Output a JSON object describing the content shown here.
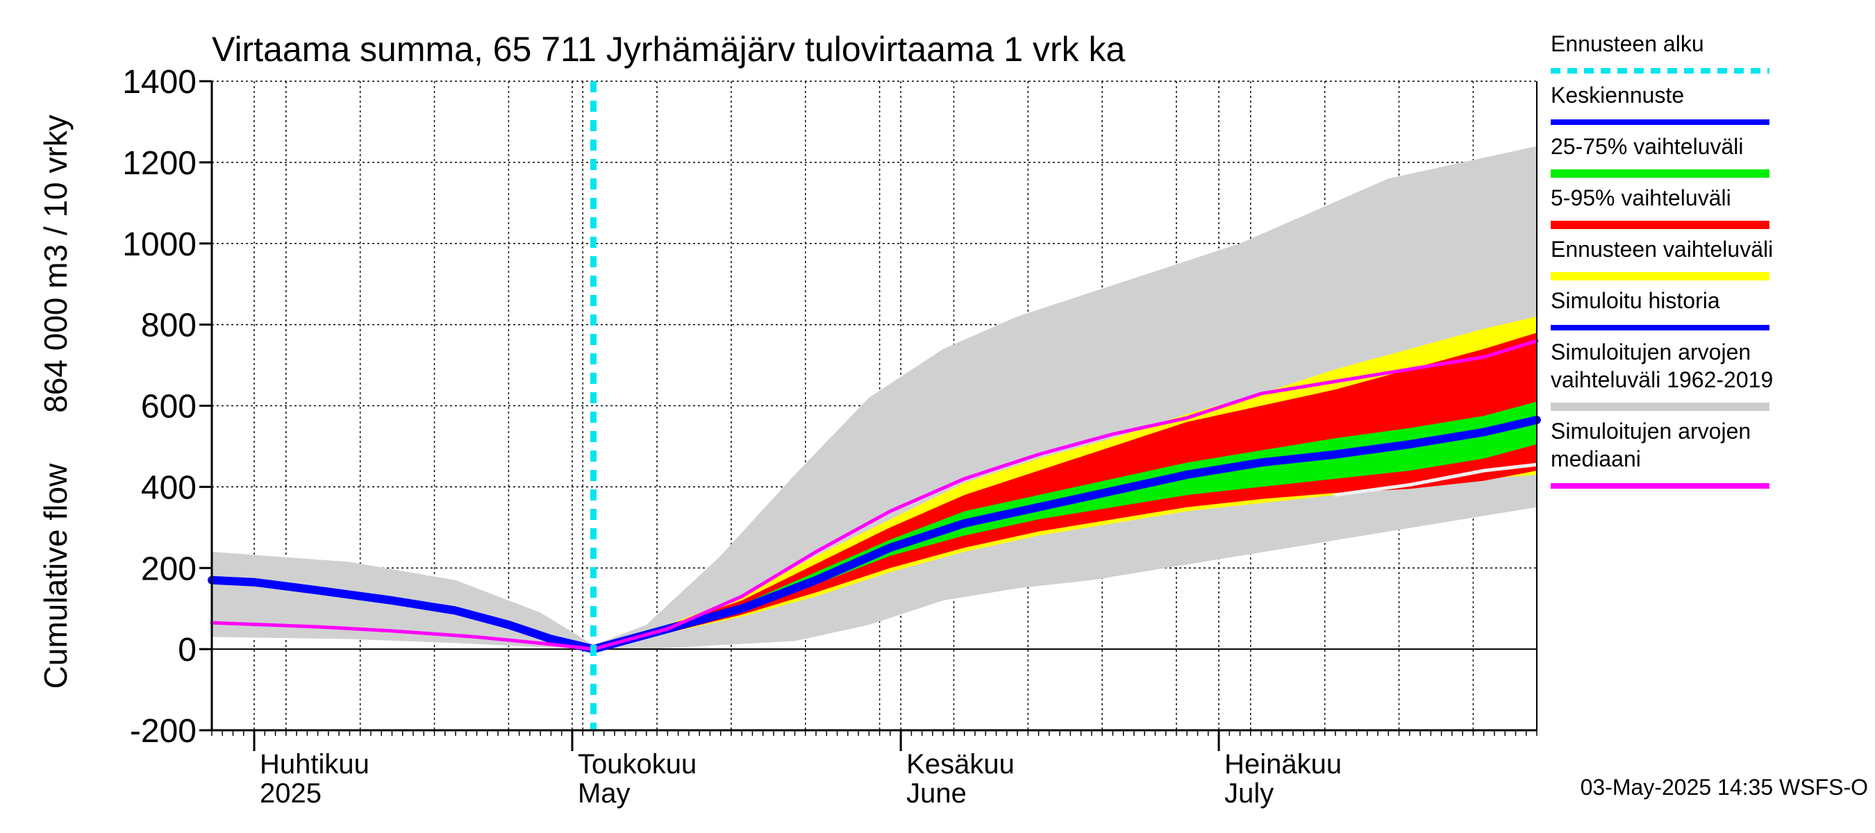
{
  "chart_data": {
    "type": "area",
    "title": "Virtaama summa, 65 711 Jyrhämäjärv tulovirtaama 1 vrk ka",
    "ylabel_left": "Cumulative flow",
    "ylabel_right": "864 000 m3 / 10 vrky",
    "ylim": [
      -200,
      1400
    ],
    "yticks": [
      -200,
      0,
      200,
      400,
      600,
      800,
      1000,
      1200,
      1400
    ],
    "xlim": [
      "2025-03-28",
      "2025-07-31"
    ],
    "forecast_start": "2025-05-03",
    "grid": true,
    "month_labels": [
      {
        "date": "2025-04-01",
        "fi": "Huhtikuu",
        "en": "2025"
      },
      {
        "date": "2025-05-01",
        "fi": "Toukokuu",
        "en": "May"
      },
      {
        "date": "2025-06-01",
        "fi": "Kesäkuu",
        "en": "June"
      },
      {
        "date": "2025-07-01",
        "fi": "Heinäkuu",
        "en": "July"
      }
    ],
    "legend": [
      {
        "label": "Ennusteen alku",
        "color": "#00e5ee",
        "style": "dashed"
      },
      {
        "label": "Keskiennuste",
        "color": "#0000ff",
        "style": "line"
      },
      {
        "label": "25-75% vaihteluväli",
        "color": "#00ee00",
        "style": "band"
      },
      {
        "label": "5-95% vaihteluväli",
        "color": "#ff0000",
        "style": "band"
      },
      {
        "label": "Ennusteen vaihteluväli",
        "color": "#ffff00",
        "style": "band"
      },
      {
        "label": "Simuloitu historia",
        "color": "#0000ff",
        "style": "line"
      },
      {
        "label": "Simuloitujen arvojen vaihteluväli 1962-2019",
        "color": "#cccccc",
        "style": "band"
      },
      {
        "label": "Simuloitujen arvojen mediaani",
        "color": "#ff00ff",
        "style": "line"
      }
    ],
    "series": [
      {
        "name": "Simuloitujen arvojen vaihteluväli 1962-2019",
        "color": "#d0d0d0",
        "points": [
          [
            "2025-03-28",
            30,
            240
          ],
          [
            "2025-04-10",
            25,
            215
          ],
          [
            "2025-04-20",
            15,
            170
          ],
          [
            "2025-04-28",
            5,
            90
          ],
          [
            "2025-05-03",
            0,
            10
          ],
          [
            "2025-05-08",
            0,
            60
          ],
          [
            "2025-05-15",
            10,
            230
          ],
          [
            "2025-05-22",
            20,
            430
          ],
          [
            "2025-05-29",
            60,
            620
          ],
          [
            "2025-06-05",
            120,
            740
          ],
          [
            "2025-06-12",
            150,
            820
          ],
          [
            "2025-06-19",
            170,
            880
          ],
          [
            "2025-06-26",
            200,
            940
          ],
          [
            "2025-07-03",
            230,
            1000
          ],
          [
            "2025-07-10",
            260,
            1080
          ],
          [
            "2025-07-17",
            290,
            1160
          ],
          [
            "2025-07-24",
            320,
            1200
          ],
          [
            "2025-07-31",
            350,
            1240
          ]
        ]
      },
      {
        "name": "Ennusteen vaihteluväli",
        "color": "#ffff00",
        "points": [
          [
            "2025-05-03",
            0,
            0
          ],
          [
            "2025-05-10",
            40,
            60
          ],
          [
            "2025-05-17",
            80,
            130
          ],
          [
            "2025-05-24",
            130,
            230
          ],
          [
            "2025-05-31",
            190,
            320
          ],
          [
            "2025-06-07",
            240,
            410
          ],
          [
            "2025-06-14",
            280,
            470
          ],
          [
            "2025-06-21",
            310,
            520
          ],
          [
            "2025-06-28",
            340,
            580
          ],
          [
            "2025-07-05",
            360,
            630
          ],
          [
            "2025-07-12",
            380,
            690
          ],
          [
            "2025-07-19",
            400,
            740
          ],
          [
            "2025-07-26",
            420,
            790
          ],
          [
            "2025-07-31",
            430,
            820
          ]
        ]
      },
      {
        "name": "5-95% vaihteluväli",
        "color": "#ff0000",
        "points": [
          [
            "2025-05-03",
            0,
            0
          ],
          [
            "2025-05-10",
            40,
            58
          ],
          [
            "2025-05-17",
            85,
            120
          ],
          [
            "2025-05-24",
            140,
            210
          ],
          [
            "2025-05-31",
            200,
            300
          ],
          [
            "2025-06-07",
            250,
            380
          ],
          [
            "2025-06-14",
            290,
            440
          ],
          [
            "2025-06-21",
            320,
            500
          ],
          [
            "2025-06-28",
            350,
            560
          ],
          [
            "2025-07-05",
            370,
            600
          ],
          [
            "2025-07-12",
            385,
            640
          ],
          [
            "2025-07-19",
            395,
            690
          ],
          [
            "2025-07-26",
            415,
            740
          ],
          [
            "2025-07-31",
            440,
            780
          ]
        ]
      },
      {
        "name": "25-75% vaihteluväli",
        "color": "#00ee00",
        "points": [
          [
            "2025-05-03",
            0,
            0
          ],
          [
            "2025-05-10",
            45,
            55
          ],
          [
            "2025-05-17",
            95,
            110
          ],
          [
            "2025-05-24",
            160,
            190
          ],
          [
            "2025-05-31",
            230,
            270
          ],
          [
            "2025-06-07",
            280,
            340
          ],
          [
            "2025-06-14",
            320,
            380
          ],
          [
            "2025-06-21",
            350,
            420
          ],
          [
            "2025-06-28",
            380,
            460
          ],
          [
            "2025-07-05",
            400,
            490
          ],
          [
            "2025-07-12",
            420,
            520
          ],
          [
            "2025-07-19",
            440,
            545
          ],
          [
            "2025-07-26",
            470,
            575
          ],
          [
            "2025-07-31",
            505,
            610
          ]
        ]
      }
    ],
    "lines": [
      {
        "name": "Simuloitu historia",
        "color": "#0000ff",
        "points": [
          [
            "2025-03-28",
            170
          ],
          [
            "2025-04-01",
            165
          ],
          [
            "2025-04-07",
            145
          ],
          [
            "2025-04-14",
            120
          ],
          [
            "2025-04-20",
            95
          ],
          [
            "2025-04-25",
            60
          ],
          [
            "2025-04-29",
            25
          ],
          [
            "2025-05-03",
            0
          ]
        ]
      },
      {
        "name": "Keskiennuste",
        "color": "#0000ff",
        "points": [
          [
            "2025-05-03",
            0
          ],
          [
            "2025-05-10",
            50
          ],
          [
            "2025-05-17",
            100
          ],
          [
            "2025-05-24",
            170
          ],
          [
            "2025-05-31",
            250
          ],
          [
            "2025-06-07",
            310
          ],
          [
            "2025-06-14",
            350
          ],
          [
            "2025-06-21",
            390
          ],
          [
            "2025-06-28",
            430
          ],
          [
            "2025-07-05",
            460
          ],
          [
            "2025-07-12",
            480
          ],
          [
            "2025-07-19",
            505
          ],
          [
            "2025-07-26",
            535
          ],
          [
            "2025-07-31",
            565
          ]
        ]
      },
      {
        "name": "Simuloitujen arvojen mediaani",
        "color": "#ff00ff",
        "points": [
          [
            "2025-03-28",
            65
          ],
          [
            "2025-04-07",
            55
          ],
          [
            "2025-04-14",
            45
          ],
          [
            "2025-04-22",
            30
          ],
          [
            "2025-04-29",
            12
          ],
          [
            "2025-05-03",
            0
          ],
          [
            "2025-05-10",
            50
          ],
          [
            "2025-05-17",
            130
          ],
          [
            "2025-05-24",
            240
          ],
          [
            "2025-05-31",
            340
          ],
          [
            "2025-06-07",
            420
          ],
          [
            "2025-06-14",
            480
          ],
          [
            "2025-06-21",
            530
          ],
          [
            "2025-06-28",
            570
          ],
          [
            "2025-07-05",
            630
          ],
          [
            "2025-07-12",
            660
          ],
          [
            "2025-07-19",
            690
          ],
          [
            "2025-07-26",
            720
          ],
          [
            "2025-07-31",
            760
          ]
        ]
      },
      {
        "name": "",
        "color": "#f0f0f0",
        "points": [
          [
            "2025-07-12",
            380
          ],
          [
            "2025-07-19",
            405
          ],
          [
            "2025-07-26",
            440
          ],
          [
            "2025-07-31",
            455
          ]
        ]
      }
    ]
  },
  "footer": "03-May-2025 14:35 WSFS-O"
}
